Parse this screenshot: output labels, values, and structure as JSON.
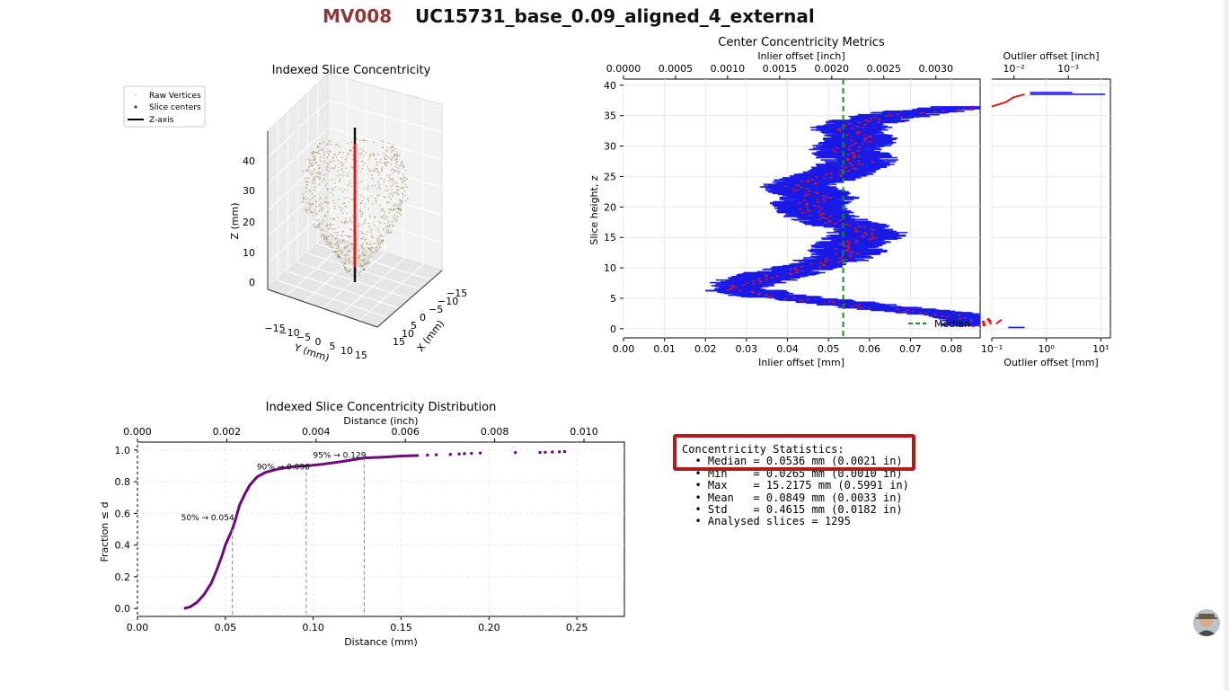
{
  "header": {
    "code": "MV008",
    "title": "UC15731_base_0.09_aligned_4_external"
  },
  "colors": {
    "code": "#8b3a3a",
    "series_blue": "#1a1ae6",
    "series_red": "#e01a1a",
    "median": "#1e8c1e",
    "cdf": "#6a0a7a",
    "highlight": "#b01c1c",
    "vertices": "#8b7a3a"
  },
  "icons": {
    "avatar": "user-avatar-icon"
  },
  "stats": {
    "title": "Concentricity Statistics:",
    "lines": [
      "  • Median = 0.0536 mm (0.0021 in)",
      "  • Min    = 0.0265 mm (0.0010 in)",
      "  • Max    = 15.2175 mm (0.5991 in)",
      "  • Mean   = 0.0849 mm (0.0033 in)",
      "  • Std    = 0.4615 mm (0.0182 in)",
      "  • Analysed slices = 1295"
    ]
  },
  "chart_data": [
    {
      "type": "scatter",
      "title": "Indexed Slice Concentricity",
      "projection": "3d",
      "xlabel": "X (mm)",
      "ylabel": "Y (mm)",
      "zlabel": "Z (mm)",
      "legend": {
        "placement": "top-left",
        "entries": [
          "Raw Vertices",
          "Slice centers",
          "Z-axis"
        ]
      },
      "x_ticks": [
        "15",
        "10",
        "5",
        "0",
        "−5",
        "−10",
        "−15"
      ],
      "y_ticks": [
        "−15",
        "−10",
        "−5",
        "0",
        "5",
        "10",
        "15"
      ],
      "z_ticks": [
        "0",
        "10",
        "20",
        "30",
        "40"
      ],
      "zlim": [
        -5,
        47
      ],
      "z_axis_range": [
        0,
        44
      ],
      "slice_center_range": [
        3,
        44
      ]
    },
    {
      "type": "line",
      "title": "Center Concentricity Metrics",
      "xlabel": "Inlier offset [mm]",
      "x2label": "Inlier offset [inch]",
      "ylabel": "Slice height, z",
      "xlim": [
        0,
        0.087
      ],
      "ylim": [
        -1.5,
        41
      ],
      "x_ticks": [
        "0.00",
        "0.01",
        "0.02",
        "0.03",
        "0.04",
        "0.05",
        "0.06",
        "0.07",
        "0.08"
      ],
      "x2_ticks": [
        "0.0000",
        "0.0005",
        "0.0010",
        "0.0015",
        "0.0020",
        "0.0025",
        "0.0030"
      ],
      "y_ticks": [
        "0",
        "5",
        "10",
        "15",
        "20",
        "25",
        "30",
        "35",
        "40"
      ],
      "median_line": {
        "name": "Median",
        "x": 0.0536
      },
      "legend": {
        "placement": "bottom-right"
      },
      "grid": true,
      "series": [
        {
          "color": "blue",
          "z": [
            0.5,
            1.5,
            2.5,
            3.5,
            4.5,
            5.5,
            6.5,
            7.5,
            8.5,
            9.5,
            10.5,
            11.5,
            12.5,
            13.5,
            14.5,
            15.5,
            16.5,
            17.5,
            18.5,
            19.5,
            20.5,
            21.5,
            22.5,
            23.5,
            24.5,
            25.5,
            26.5,
            27.5,
            28.5,
            29.5,
            30.5,
            31.5,
            32.5,
            33.5,
            34.5,
            35.5,
            36.5
          ],
          "x": [
            0.087,
            0.087,
            0.078,
            0.062,
            0.05,
            0.035,
            0.028,
            0.03,
            0.035,
            0.041,
            0.047,
            0.052,
            0.055,
            0.054,
            0.057,
            0.06,
            0.058,
            0.052,
            0.048,
            0.046,
            0.045,
            0.048,
            0.045,
            0.042,
            0.047,
            0.052,
            0.055,
            0.058,
            0.056,
            0.054,
            0.057,
            0.058,
            0.055,
            0.056,
            0.062,
            0.07,
            0.086
          ]
        }
      ]
    },
    {
      "type": "line",
      "title": "",
      "xlabel": "Outlier offset [mm]",
      "x2label": "Outlier offset [inch]",
      "xscale": "log",
      "xlim": [
        0.1,
        15
      ],
      "ylim": [
        -1.5,
        41
      ],
      "x_ticks": [
        "10⁻¹",
        "10⁰",
        "10¹"
      ],
      "x2_ticks": [
        "10⁻²",
        "10⁻¹"
      ],
      "series": [
        {
          "color": "blue",
          "points": [
            [
              0.4,
              0.2
            ],
            [
              0.2,
              0.5
            ],
            [
              12,
              38.5
            ],
            [
              3,
              38.8
            ],
            [
              0.5,
              38.5
            ]
          ]
        },
        {
          "color": "red",
          "points": [
            [
              0.12,
              0.8
            ],
            [
              0.15,
              1.5
            ],
            [
              0.1,
              36.5
            ],
            [
              0.18,
              37.2
            ],
            [
              0.25,
              38.0
            ],
            [
              0.4,
              38.5
            ]
          ]
        }
      ]
    },
    {
      "type": "line",
      "title": "Indexed Slice Concentricity Distribution",
      "xlabel": "Distance (mm)",
      "x2label": "Distance (inch)",
      "ylabel": "Fraction ≤ d",
      "xlim": [
        0,
        0.277
      ],
      "ylim": [
        -0.05,
        1.05
      ],
      "x_ticks": [
        "0.00",
        "0.05",
        "0.10",
        "0.15",
        "0.20",
        "0.25"
      ],
      "x2_ticks": [
        "0.000",
        "0.002",
        "0.004",
        "0.006",
        "0.008",
        "0.010"
      ],
      "y_ticks": [
        "0.0",
        "0.2",
        "0.4",
        "0.6",
        "0.8",
        "1.0"
      ],
      "grid": true,
      "cdf_x": [
        0.0265,
        0.03,
        0.034,
        0.038,
        0.042,
        0.045,
        0.048,
        0.05,
        0.052,
        0.054,
        0.056,
        0.058,
        0.061,
        0.064,
        0.068,
        0.073,
        0.08,
        0.088,
        0.096,
        0.105,
        0.115,
        0.129,
        0.14,
        0.15,
        0.16
      ],
      "cdf_y": [
        0.0,
        0.01,
        0.04,
        0.09,
        0.16,
        0.24,
        0.33,
        0.4,
        0.45,
        0.5,
        0.57,
        0.65,
        0.72,
        0.78,
        0.83,
        0.86,
        0.88,
        0.895,
        0.9,
        0.91,
        0.925,
        0.95,
        0.955,
        0.962,
        0.966
      ],
      "tail_points": [
        [
          0.165,
          0.968
        ],
        [
          0.17,
          0.97
        ],
        [
          0.178,
          0.972
        ],
        [
          0.183,
          0.975
        ],
        [
          0.186,
          0.977
        ],
        [
          0.19,
          0.979
        ],
        [
          0.195,
          0.981
        ],
        [
          0.215,
          0.984
        ],
        [
          0.229,
          0.985
        ],
        [
          0.232,
          0.986
        ],
        [
          0.236,
          0.987
        ],
        [
          0.24,
          0.988
        ],
        [
          0.243,
          0.99
        ]
      ],
      "percentiles": [
        {
          "label": "50% → 0.054",
          "x": 0.054,
          "y": 0.5
        },
        {
          "label": "90% → 0.096",
          "x": 0.096,
          "y": 0.9
        },
        {
          "label": "95% → 0.129",
          "x": 0.129,
          "y": 0.95
        }
      ]
    }
  ]
}
